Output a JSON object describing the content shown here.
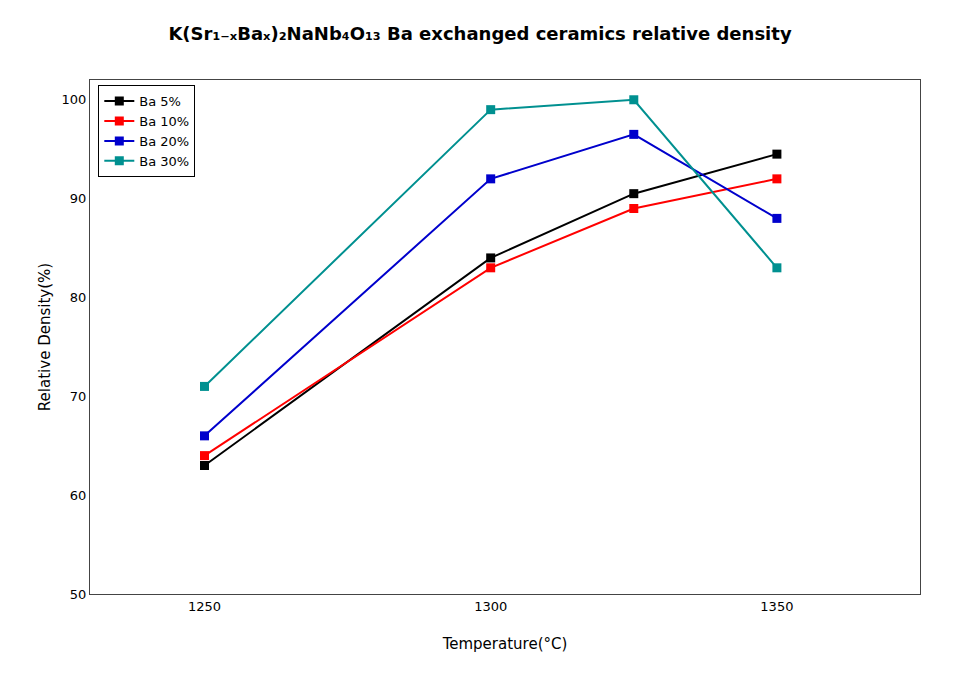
{
  "chart_data": {
    "type": "line",
    "title": "K(Sr₁₋ₓBaₓ)₂NaNb₄O₁₃ Ba exchanged ceramics relative density",
    "xlabel": "Temperature(°C)",
    "ylabel": "Relative Density(%)",
    "x": [
      1250,
      1300,
      1325,
      1350
    ],
    "series": [
      {
        "name": "Ba 5%",
        "color": "#000000",
        "values": [
          63.0,
          84.0,
          90.5,
          94.5
        ]
      },
      {
        "name": "Ba 10%",
        "color": "#ff0000",
        "values": [
          64.0,
          83.0,
          89.0,
          92.0
        ]
      },
      {
        "name": "Ba 20%",
        "color": "#0000cc",
        "values": [
          66.0,
          92.0,
          96.5,
          88.0
        ]
      },
      {
        "name": "Ba 30%",
        "color": "#009090",
        "values": [
          71.0,
          99.0,
          100.0,
          83.0
        ]
      }
    ],
    "xlim": [
      1230,
      1375
    ],
    "xticks": [
      1250,
      1300,
      1350
    ],
    "ylim": [
      50,
      102
    ],
    "yticks": [
      50,
      60,
      70,
      80,
      90,
      100
    ],
    "grid": false,
    "legend": "upper left",
    "marker": "square",
    "line_style": "solid"
  }
}
